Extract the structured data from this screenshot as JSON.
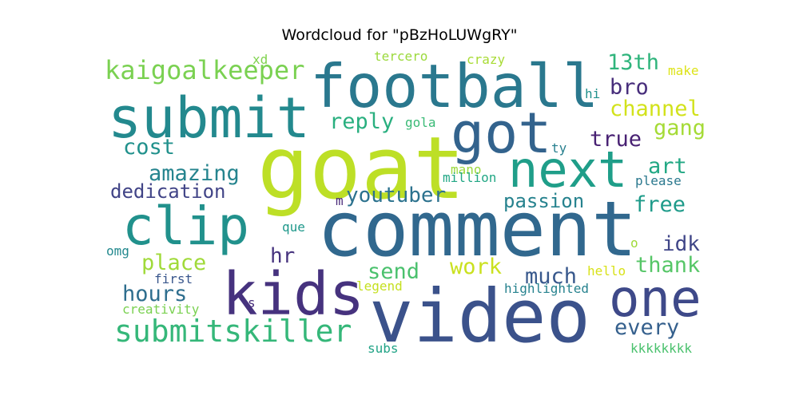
{
  "title": "Wordcloud for \"pBzHoLUWgRY\"",
  "chart_data": {
    "type": "wordcloud",
    "title": "Wordcloud for \"pBzHoLUWgRY\"",
    "words": [
      {
        "text": "goat",
        "color": "#bddf26"
      },
      {
        "text": "comment",
        "color": "#31688e"
      },
      {
        "text": "video",
        "color": "#3b528b"
      },
      {
        "text": "football",
        "color": "#2a788e"
      },
      {
        "text": "submit",
        "color": "#23898e"
      },
      {
        "text": "got",
        "color": "#33638d"
      },
      {
        "text": "next",
        "color": "#1f9e89"
      },
      {
        "text": "clip",
        "color": "#21918c"
      },
      {
        "text": "kids",
        "color": "#46327e"
      },
      {
        "text": "one",
        "color": "#3e4989"
      },
      {
        "text": "submitskiller",
        "color": "#35b779"
      },
      {
        "text": "kaigoalkeeper",
        "color": "#7ad151"
      },
      {
        "text": "youtuber",
        "color": "#2c728e"
      },
      {
        "text": "13th",
        "color": "#2fb47c"
      },
      {
        "text": "bro",
        "color": "#472d7b"
      },
      {
        "text": "channel",
        "color": "#d2e21b"
      },
      {
        "text": "gang",
        "color": "#a5db36"
      },
      {
        "text": "reply",
        "color": "#29af7f"
      },
      {
        "text": "cost",
        "color": "#21918c"
      },
      {
        "text": "true",
        "color": "#482173"
      },
      {
        "text": "amazing",
        "color": "#25848e"
      },
      {
        "text": "art",
        "color": "#22a884"
      },
      {
        "text": "dedication",
        "color": "#414487"
      },
      {
        "text": "passion",
        "color": "#26828e"
      },
      {
        "text": "free",
        "color": "#1e9b8a"
      },
      {
        "text": "place",
        "color": "#a0da39"
      },
      {
        "text": "hr",
        "color": "#46337e"
      },
      {
        "text": "idk",
        "color": "#404688"
      },
      {
        "text": "send",
        "color": "#4ac16d"
      },
      {
        "text": "work",
        "color": "#cae11f"
      },
      {
        "text": "much",
        "color": "#38588c"
      },
      {
        "text": "thank",
        "color": "#56c667"
      },
      {
        "text": "hours",
        "color": "#2e6e8e"
      },
      {
        "text": "every",
        "color": "#35608d"
      },
      {
        "text": "xd",
        "color": "#7fd34e"
      },
      {
        "text": "tercero",
        "color": "#9bd93c"
      },
      {
        "text": "crazy",
        "color": "#a8db34"
      },
      {
        "text": "make",
        "color": "#dde318"
      },
      {
        "text": "hi",
        "color": "#21918c"
      },
      {
        "text": "gola",
        "color": "#3aba76"
      },
      {
        "text": "ty",
        "color": "#277f8e"
      },
      {
        "text": "mano",
        "color": "#9bd93c"
      },
      {
        "text": "million",
        "color": "#22a785"
      },
      {
        "text": "please",
        "color": "#2a788e"
      },
      {
        "text": "m",
        "color": "#482878"
      },
      {
        "text": "que",
        "color": "#1f988b"
      },
      {
        "text": "o",
        "color": "#a0da39"
      },
      {
        "text": "omg",
        "color": "#23898e"
      },
      {
        "text": "first",
        "color": "#39568c"
      },
      {
        "text": "hello",
        "color": "#d8e219"
      },
      {
        "text": "legend",
        "color": "#c5e021"
      },
      {
        "text": "highlighted",
        "color": "#26828e"
      },
      {
        "text": "s",
        "color": "#472d7b"
      },
      {
        "text": "creativity",
        "color": "#7ad151"
      },
      {
        "text": "subs",
        "color": "#20a386"
      },
      {
        "text": "kkkkkkkk",
        "color": "#4ac16d"
      }
    ]
  }
}
